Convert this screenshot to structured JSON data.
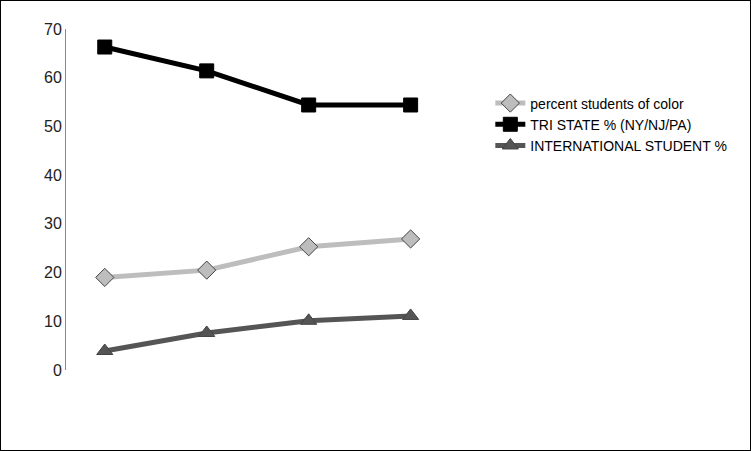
{
  "chart_data": {
    "type": "line",
    "categories": [
      null,
      null,
      null,
      null
    ],
    "series": [
      {
        "name": "percent students of color",
        "color": "#bdbdbd",
        "marker": "diamond",
        "values": [
          19,
          20.5,
          25.3,
          26.9
        ]
      },
      {
        "name": "TRI STATE % (NY/NJ/PA)",
        "color": "#000000",
        "marker": "square",
        "values": [
          66.3,
          61.4,
          54.4,
          54.4
        ]
      },
      {
        "name": "INTERNATIONAL STUDENT %",
        "color": "#555555",
        "marker": "triangle",
        "values": [
          3.9,
          7.6,
          10.1,
          11.1
        ]
      }
    ],
    "ylim": [
      0,
      70
    ],
    "yticks": [
      0,
      10,
      20,
      30,
      40,
      50,
      60,
      70
    ],
    "grid": false,
    "legend": "right",
    "tick_labels": "y"
  }
}
